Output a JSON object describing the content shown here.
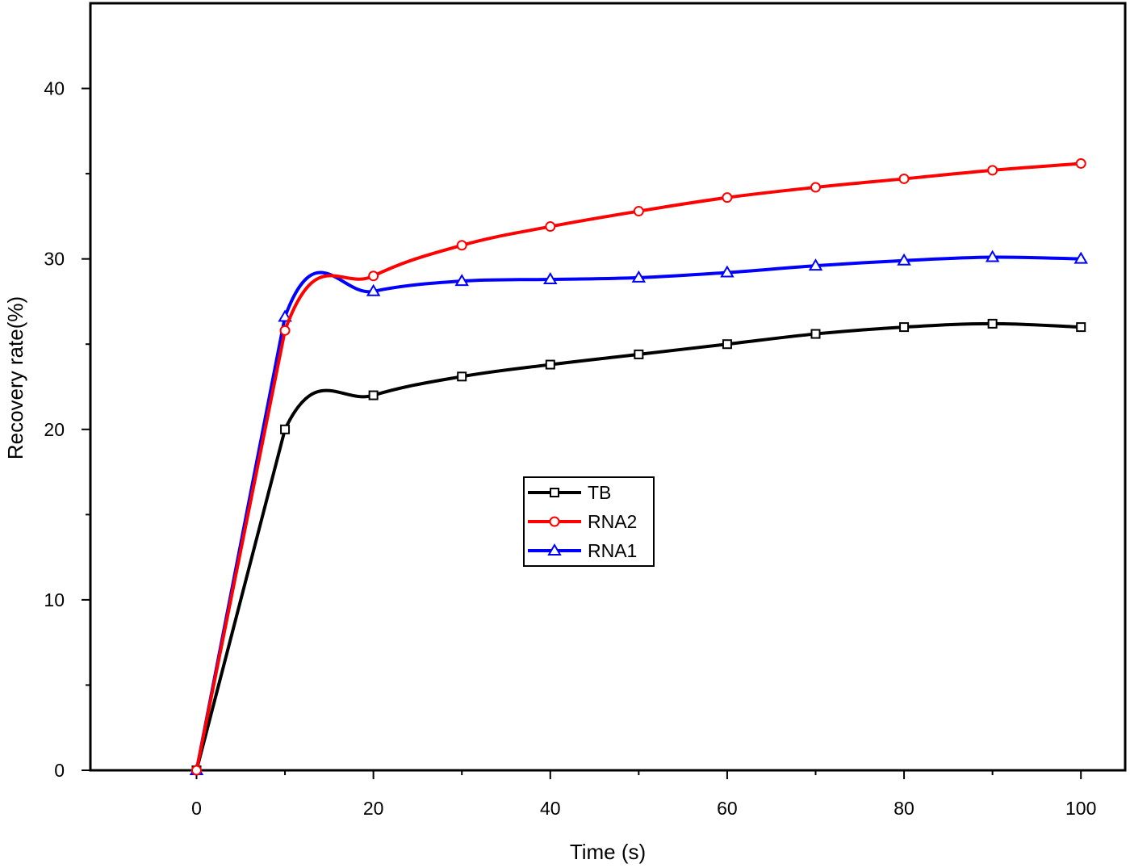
{
  "chart_data": {
    "type": "line",
    "title": "",
    "xlabel": "Time (s)",
    "ylabel": "Recovery rate(%)",
    "xlim": [
      -12,
      105
    ],
    "ylim": [
      0,
      45
    ],
    "x_ticks": [
      0,
      20,
      40,
      60,
      80,
      100
    ],
    "x_minor_ticks": [
      10,
      30,
      50,
      70,
      90
    ],
    "y_ticks": [
      0,
      10,
      20,
      30,
      40
    ],
    "y_minor_ticks": [
      5,
      15,
      25,
      35
    ],
    "grid": false,
    "legend_position": "center",
    "x": [
      0,
      10,
      20,
      30,
      40,
      50,
      60,
      70,
      80,
      90,
      100
    ],
    "series": [
      {
        "name": "TB",
        "color": "#000000",
        "marker": "square",
        "values": [
          0,
          20.0,
          22.0,
          23.1,
          23.8,
          24.4,
          25.0,
          25.6,
          26.0,
          26.2,
          26.0
        ]
      },
      {
        "name": "RNA2",
        "color": "#ff0000",
        "marker": "circle",
        "values": [
          0,
          25.8,
          29.0,
          30.8,
          31.9,
          32.8,
          33.6,
          34.2,
          34.7,
          35.2,
          35.6
        ]
      },
      {
        "name": "RNA1",
        "color": "#0000ff",
        "marker": "triangle",
        "values": [
          0,
          26.6,
          28.1,
          28.7,
          28.8,
          28.9,
          29.2,
          29.6,
          29.9,
          30.1,
          30.0
        ]
      }
    ]
  }
}
